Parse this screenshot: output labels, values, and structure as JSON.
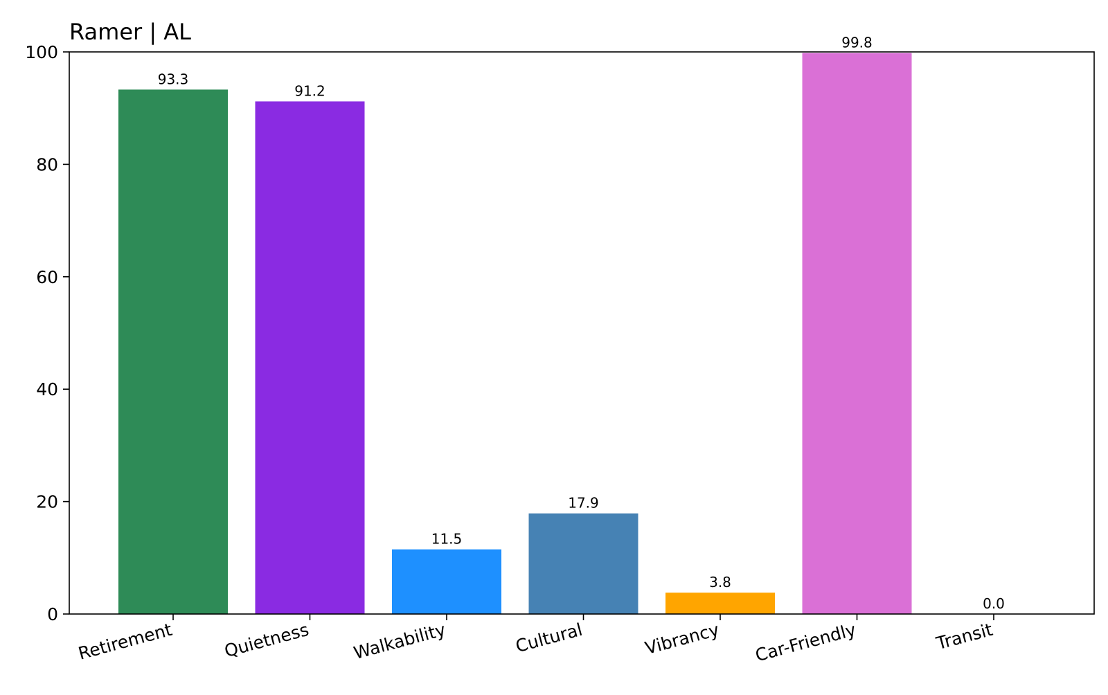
{
  "chart_data": {
    "type": "bar",
    "title": "Ramer | AL",
    "xlabel": "",
    "ylabel": "",
    "categories": [
      "Retirement",
      "Quietness",
      "Walkability",
      "Cultural",
      "Vibrancy",
      "Car-Friendly",
      "Transit"
    ],
    "values": [
      93.3,
      91.2,
      11.5,
      17.9,
      3.8,
      99.8,
      0.0
    ],
    "value_labels": [
      "93.3",
      "91.2",
      "11.5",
      "17.9",
      "3.8",
      "99.8",
      "0.0"
    ],
    "colors": [
      "#2e8b57",
      "#8a2be2",
      "#1e90ff",
      "#4682b4",
      "#ffa500",
      "#da70d6",
      "#ffd700"
    ],
    "ylim": [
      0,
      100
    ],
    "yticks": [
      0,
      20,
      40,
      60,
      80,
      100
    ],
    "ytick_labels": [
      "0",
      "20",
      "40",
      "60",
      "80",
      "100"
    ],
    "grid": false,
    "legend": "none"
  }
}
